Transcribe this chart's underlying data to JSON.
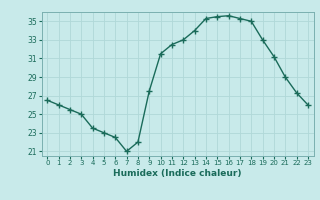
{
  "x": [
    0,
    1,
    2,
    3,
    4,
    5,
    6,
    7,
    8,
    9,
    10,
    11,
    12,
    13,
    14,
    15,
    16,
    17,
    18,
    19,
    20,
    21,
    22,
    23
  ],
  "y": [
    26.5,
    26.0,
    25.5,
    25.0,
    23.5,
    23.0,
    22.5,
    21.0,
    22.0,
    27.5,
    31.5,
    32.5,
    33.0,
    34.0,
    35.3,
    35.5,
    35.6,
    35.3,
    35.0,
    33.0,
    31.2,
    29.0,
    27.3,
    26.0
  ],
  "xlabel": "Humidex (Indice chaleur)",
  "xlim": [
    -0.5,
    23.5
  ],
  "ylim": [
    20.5,
    36.0
  ],
  "yticks": [
    21,
    23,
    25,
    27,
    29,
    31,
    33,
    35
  ],
  "xticks": [
    0,
    1,
    2,
    3,
    4,
    5,
    6,
    7,
    8,
    9,
    10,
    11,
    12,
    13,
    14,
    15,
    16,
    17,
    18,
    19,
    20,
    21,
    22,
    23
  ],
  "line_color": "#1a6b5a",
  "marker_color": "#1a6b5a",
  "bg_color": "#c8eaea",
  "grid_color": "#b0d8d8",
  "text_color": "#1a6b5a",
  "fig_bg": "#c8eaea",
  "tick_label_color": "#1a6b5a"
}
